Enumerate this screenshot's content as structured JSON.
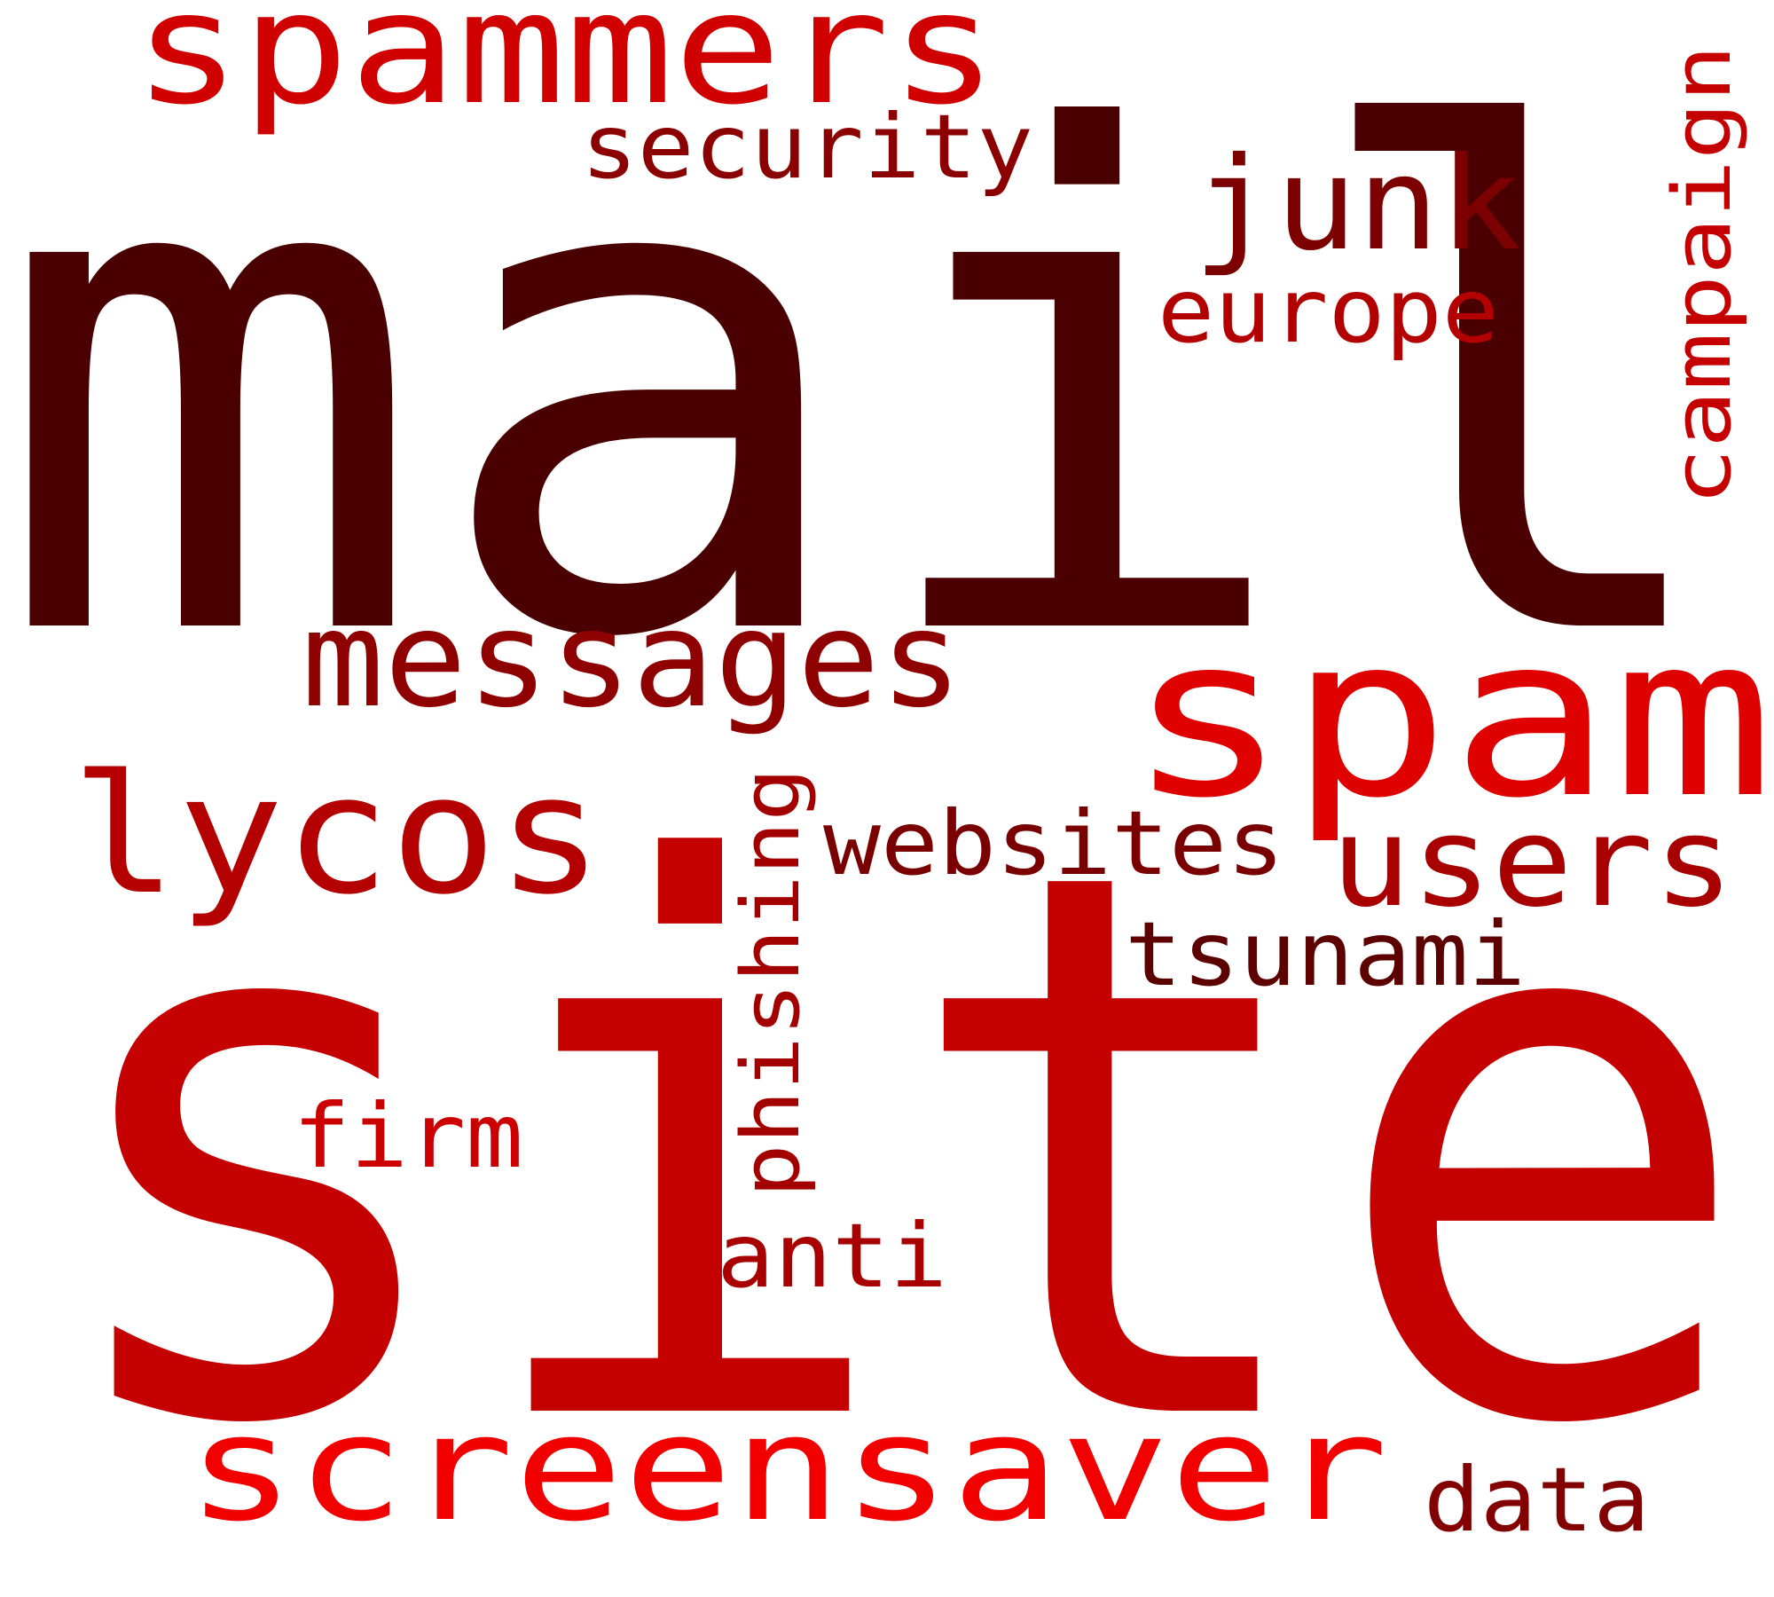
{
  "word_cloud": {
    "words": [
      {
        "text": "mail",
        "color": "#4a0000"
      },
      {
        "text": "site",
        "color": "#c50000"
      },
      {
        "text": "spammers",
        "color": "#d10000"
      },
      {
        "text": "security",
        "color": "#8b0000"
      },
      {
        "text": "junk",
        "color": "#7d0000"
      },
      {
        "text": "europe",
        "color": "#b30000"
      },
      {
        "text": "campaign",
        "color": "#c40000"
      },
      {
        "text": "messages",
        "color": "#8f0000"
      },
      {
        "text": "spam",
        "color": "#df0000"
      },
      {
        "text": "lycos",
        "color": "#b40000"
      },
      {
        "text": "websites",
        "color": "#7a0000"
      },
      {
        "text": "users",
        "color": "#a80000"
      },
      {
        "text": "phishing",
        "color": "#a30000"
      },
      {
        "text": "tsunami",
        "color": "#5c0000"
      },
      {
        "text": "firm",
        "color": "#cc0000"
      },
      {
        "text": "anti",
        "color": "#a80000"
      },
      {
        "text": "screensaver",
        "color": "#f20000"
      },
      {
        "text": "data",
        "color": "#820000"
      }
    ]
  }
}
